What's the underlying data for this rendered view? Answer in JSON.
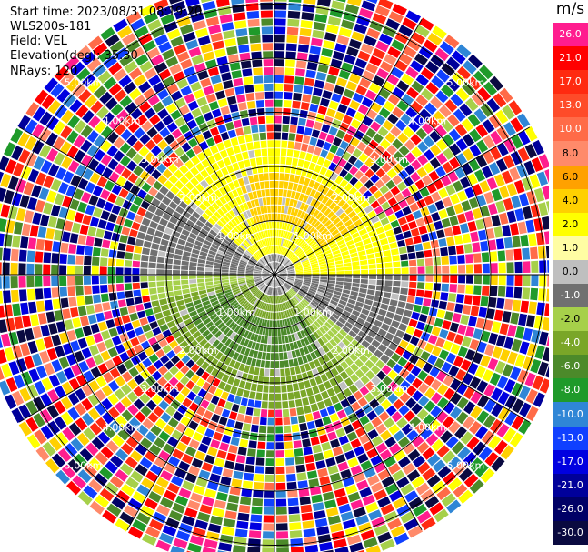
{
  "info": {
    "start_time": "Start time: 2023/08/31 08:19:20",
    "instrument": "WLS200s-181",
    "field": "Field: VEL",
    "elevation": "Elevation(deg): 35.30",
    "nrays": "NRays: 120"
  },
  "colorbar": {
    "unit": "m/s",
    "bins": [
      {
        "label": "26.0",
        "color": "#ff1d8e"
      },
      {
        "label": "21.0",
        "color": "#ff0000"
      },
      {
        "label": "17.0",
        "color": "#ff2a10"
      },
      {
        "label": "13.0",
        "color": "#fe4b29"
      },
      {
        "label": "10.0",
        "color": "#ff6b48"
      },
      {
        "label": "8.0",
        "color": "#ff8a6a"
      },
      {
        "label": "6.0",
        "color": "#ffa100"
      },
      {
        "label": "4.0",
        "color": "#ffd000"
      },
      {
        "label": "2.0",
        "color": "#ffff00"
      },
      {
        "label": "1.0",
        "color": "#fffda3"
      },
      {
        "label": "0.0",
        "color": "#bfbfbf"
      },
      {
        "label": "-1.0",
        "color": "#707070"
      },
      {
        "label": "-2.0",
        "color": "#a6d04a"
      },
      {
        "label": "-4.0",
        "color": "#7aa628"
      },
      {
        "label": "-6.0",
        "color": "#4c8a2a"
      },
      {
        "label": "-8.0",
        "color": "#1f9a2a"
      },
      {
        "label": "-10.0",
        "color": "#2f86d6"
      },
      {
        "label": "-13.0",
        "color": "#1040ff"
      },
      {
        "label": "-17.0",
        "color": "#0000e0"
      },
      {
        "label": "-21.0",
        "color": "#00009a"
      },
      {
        "label": "-26.0",
        "color": "#000066"
      },
      {
        "label": "-30.0",
        "color": "#0a0a40"
      }
    ]
  },
  "chart_data": {
    "type": "heatmap",
    "projection": "polar-ppi",
    "field": "VEL",
    "units": "m/s",
    "nrays": 120,
    "range_rings_km": [
      1.0,
      2.0,
      3.0,
      4.0,
      5.0
    ],
    "ring_labels": [
      "1.00km",
      "2.00km",
      "3.00km",
      "4.00km",
      "5.00km"
    ],
    "max_range_km": 5.4,
    "radial_lines_deg": [
      0,
      30,
      60,
      90,
      120,
      150,
      180,
      210,
      240,
      270,
      300,
      330
    ],
    "gate_spacing_km": 0.15,
    "coherent_region": {
      "max_range_km": 2.6,
      "north_sector_velocity": 2.0,
      "core_north_velocity": 4.0,
      "south_sector_velocity": -4.0,
      "core_south_velocity": -6.0,
      "transition_velocity": -1.0
    },
    "noise_beyond_km": 2.6
  }
}
